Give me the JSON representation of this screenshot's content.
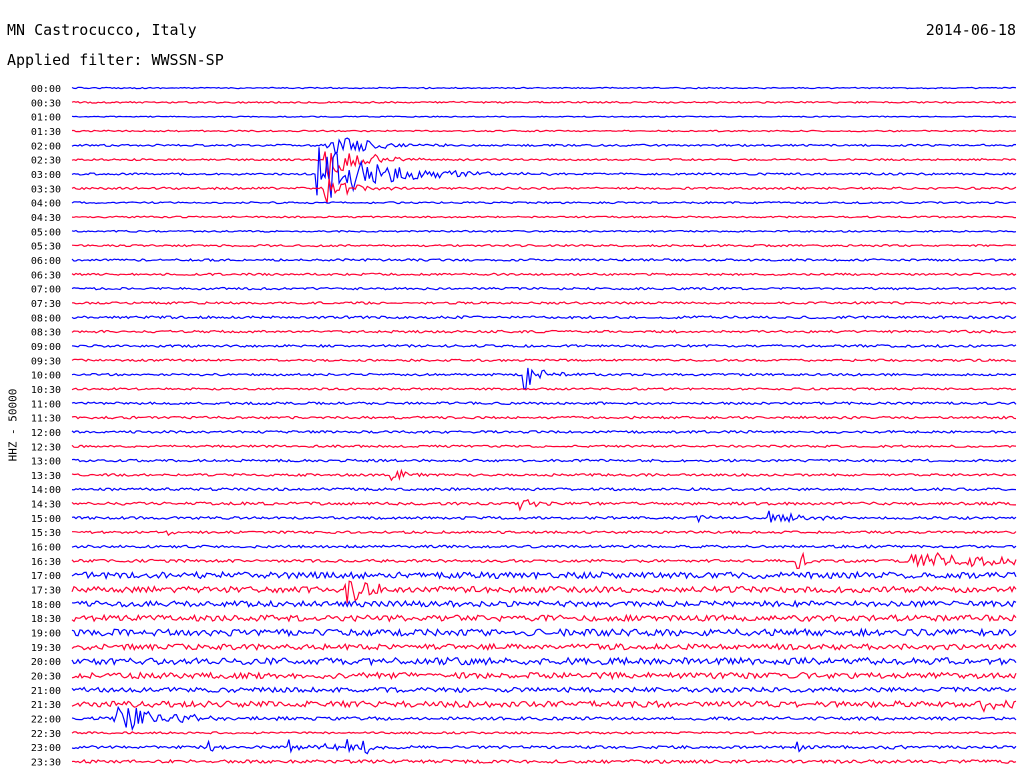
{
  "header": {
    "station": "MN Castrocucco, Italy",
    "date": "2014-06-18",
    "filter": "Applied filter: WWSSN-SP"
  },
  "axis": {
    "ylabel": "HHZ - 50000"
  },
  "colors": {
    "odd_row": "#0000ff",
    "even_row": "#ff0033",
    "text": "#000000"
  },
  "chart_data": {
    "type": "line",
    "title": "MN Castrocucco, Italy",
    "xlabel": "",
    "ylabel": "HHZ - 50000",
    "grid": false,
    "row_labels": [
      "00:00",
      "00:30",
      "01:00",
      "01:30",
      "02:00",
      "02:30",
      "03:00",
      "03:30",
      "04:00",
      "04:30",
      "05:00",
      "05:30",
      "06:00",
      "06:30",
      "07:00",
      "07:30",
      "08:00",
      "08:30",
      "09:00",
      "09:30",
      "10:00",
      "10:30",
      "11:00",
      "11:30",
      "12:00",
      "12:30",
      "13:00",
      "13:30",
      "14:00",
      "14:30",
      "15:00",
      "15:30",
      "16:00",
      "16:30",
      "17:00",
      "17:30",
      "18:00",
      "18:30",
      "19:00",
      "19:30",
      "20:00",
      "20:30",
      "21:00",
      "21:30",
      "22:00",
      "22:30",
      "23:00",
      "23:30"
    ],
    "noise_level": [
      0.6,
      0.8,
      0.5,
      0.7,
      1.0,
      0.9,
      1.0,
      1.1,
      0.9,
      0.8,
      0.8,
      1.0,
      1.1,
      1.0,
      1.1,
      1.1,
      1.3,
      1.2,
      1.2,
      1.1,
      1.1,
      1.0,
      1.2,
      1.2,
      1.2,
      1.1,
      1.2,
      1.2,
      1.3,
      1.4,
      1.3,
      1.2,
      1.3,
      1.4,
      3.2,
      3.0,
      2.8,
      3.0,
      3.3,
      2.8,
      3.4,
      3.0,
      2.4,
      3.0,
      1.6,
      1.0,
      1.4,
      1.6
    ],
    "events": [
      {
        "row": 4,
        "at": 0.27,
        "amplitude": 14,
        "duration": 0.04
      },
      {
        "row": 5,
        "at": 0.27,
        "amplitude": 24,
        "duration": 0.03
      },
      {
        "row": 5,
        "at": 0.965,
        "amplitude": 3,
        "duration": 0.006
      },
      {
        "row": 6,
        "at": 0.26,
        "amplitude": 30,
        "duration": 0.06
      },
      {
        "row": 7,
        "at": 0.27,
        "amplitude": 18,
        "duration": 0.02
      },
      {
        "row": 20,
        "at": 0.48,
        "amplitude": 16,
        "duration": 0.02
      },
      {
        "row": 27,
        "at": 0.34,
        "amplitude": 9,
        "duration": 0.012
      },
      {
        "row": 29,
        "at": 0.475,
        "amplitude": 8,
        "duration": 0.012
      },
      {
        "row": 30,
        "at": 0.66,
        "amplitude": 5,
        "duration": 0.01
      },
      {
        "row": 30,
        "at": 0.74,
        "amplitude": 7,
        "duration": 0.03
      },
      {
        "row": 31,
        "at": 0.1,
        "amplitude": 4,
        "duration": 0.008
      },
      {
        "row": 33,
        "at": 0.77,
        "amplitude": 14,
        "duration": 0.008
      },
      {
        "row": 33,
        "at": 0.89,
        "amplitude": 10,
        "duration": 0.1
      },
      {
        "row": 35,
        "at": 0.29,
        "amplitude": 24,
        "duration": 0.02
      },
      {
        "row": 43,
        "at": 0.96,
        "amplitude": 8,
        "duration": 0.02
      },
      {
        "row": 44,
        "at": 0.045,
        "amplitude": 16,
        "duration": 0.05
      },
      {
        "row": 46,
        "at": 0.145,
        "amplitude": 6,
        "duration": 0.01
      },
      {
        "row": 46,
        "at": 0.23,
        "amplitude": 8,
        "duration": 0.01
      },
      {
        "row": 46,
        "at": 0.27,
        "amplitude": 9,
        "duration": 0.01
      },
      {
        "row": 46,
        "at": 0.29,
        "amplitude": 10,
        "duration": 0.01
      },
      {
        "row": 46,
        "at": 0.31,
        "amplitude": 10,
        "duration": 0.01
      },
      {
        "row": 46,
        "at": 0.77,
        "amplitude": 5,
        "duration": 0.01
      },
      {
        "row": 46,
        "at": 0.86,
        "amplitude": 6,
        "duration": 0.01
      }
    ]
  }
}
